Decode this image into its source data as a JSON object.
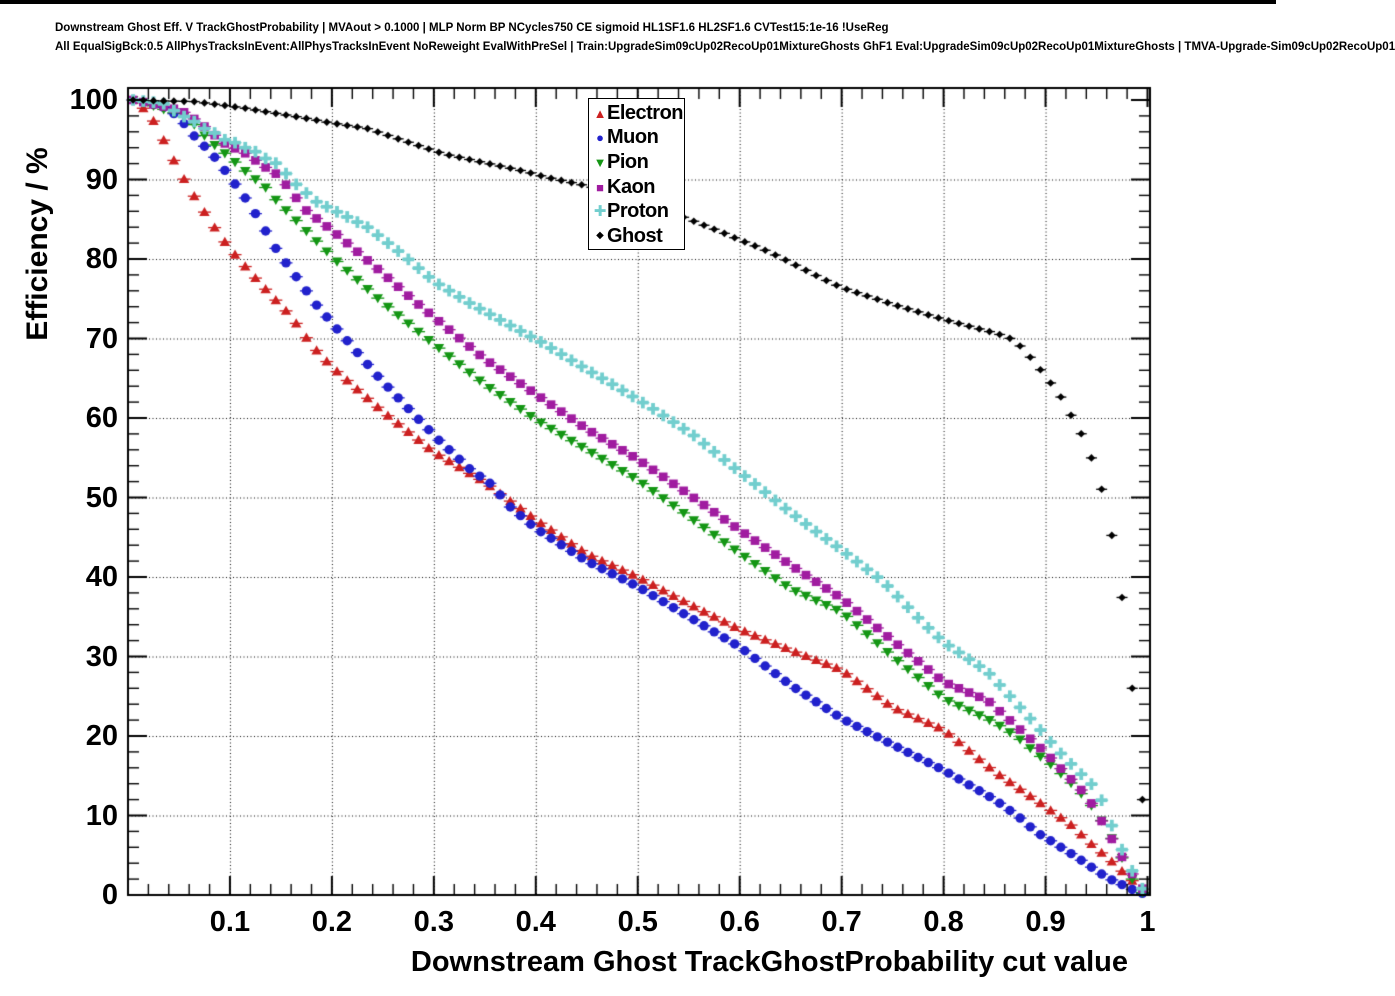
{
  "header": {
    "line1": "Downstream Ghost Eff. V TrackGhostProbability | MVAout > 0.1000 | MLP Norm BP NCycles750 CE sigmoid HL1SF1.6 HL2SF1.6 CVTest15:1e-16 !UseReg",
    "line2": "All EqualSigBck:0.5 AllPhysTracksInEvent:AllPhysTracksInEvent NoReweight EvalWithPreSel | Train:UpgradeSim09cUp02RecoUp01MixtureGhosts GhF1 Eval:UpgradeSim09cUp02RecoUp01MixtureGhosts | TMVA-Upgrade-Sim09cUp02RecoUp01"
  },
  "axes": {
    "y_label": "Efficiency / %",
    "x_label": "Downstream Ghost TrackGhostProbability cut value",
    "y_ticks": [
      {
        "value": 0,
        "label": "0"
      },
      {
        "value": 10,
        "label": "10"
      },
      {
        "value": 20,
        "label": "20"
      },
      {
        "value": 30,
        "label": "30"
      },
      {
        "value": 40,
        "label": "40"
      },
      {
        "value": 50,
        "label": "50"
      },
      {
        "value": 60,
        "label": "60"
      },
      {
        "value": 70,
        "label": "70"
      },
      {
        "value": 80,
        "label": "80"
      },
      {
        "value": 90,
        "label": "90"
      },
      {
        "value": 100,
        "label": "100"
      }
    ],
    "x_ticks": [
      {
        "value": 0.1,
        "label": "0.1"
      },
      {
        "value": 0.2,
        "label": "0.2"
      },
      {
        "value": 0.3,
        "label": "0.3"
      },
      {
        "value": 0.4,
        "label": "0.4"
      },
      {
        "value": 0.5,
        "label": "0.5"
      },
      {
        "value": 0.6,
        "label": "0.6"
      },
      {
        "value": 0.7,
        "label": "0.7"
      },
      {
        "value": 0.8,
        "label": "0.8"
      },
      {
        "value": 0.9,
        "label": "0.9"
      },
      {
        "value": 1.0,
        "label": "1"
      }
    ],
    "x_minor_step": 0.02,
    "y_minor_step": 2,
    "grid_style": "dotted"
  },
  "legend": {
    "entries": [
      {
        "label": "Electron",
        "marker": "triangle-up",
        "color": "#cc2020"
      },
      {
        "label": "Muon",
        "marker": "circle",
        "color": "#2121cc"
      },
      {
        "label": "Pion",
        "marker": "triangle-down",
        "color": "#149614"
      },
      {
        "label": "Kaon",
        "marker": "square",
        "color": "#a01ca0"
      },
      {
        "label": "Proton",
        "marker": "plus",
        "color": "#72cece"
      },
      {
        "label": "Ghost",
        "marker": "diamond",
        "color": "#000000"
      }
    ]
  },
  "chart_data": {
    "type": "scatter",
    "title": "Downstream Ghost Eff. V TrackGhostProbability | MVAout > 0.1000",
    "xlabel": "Downstream Ghost TrackGhostProbability cut value",
    "ylabel": "Efficiency / %",
    "xlim": [
      0.0,
      1.0
    ],
    "ylim": [
      0,
      101.5
    ],
    "grid": true,
    "legend_position": "top-center",
    "x_start": 0.005,
    "x_step": 0.01,
    "x_end": 0.995,
    "series": [
      {
        "name": "Electron",
        "marker": "triangle-up",
        "color": "#cc2020",
        "anchors": [
          [
            0.005,
            100
          ],
          [
            0.012,
            99.3
          ],
          [
            0.02,
            98.4
          ],
          [
            0.03,
            96.3
          ],
          [
            0.04,
            93.6
          ],
          [
            0.05,
            91.2
          ],
          [
            0.06,
            88.9
          ],
          [
            0.07,
            86.9
          ],
          [
            0.08,
            84.9
          ],
          [
            0.09,
            83.0
          ],
          [
            0.1,
            81.3
          ],
          [
            0.12,
            78.3
          ],
          [
            0.14,
            75.5
          ],
          [
            0.16,
            72.8
          ],
          [
            0.18,
            69.2
          ],
          [
            0.2,
            66.4
          ],
          [
            0.25,
            60.8
          ],
          [
            0.3,
            55.7
          ],
          [
            0.35,
            51.9
          ],
          [
            0.4,
            47.2
          ],
          [
            0.45,
            42.9
          ],
          [
            0.5,
            40.0
          ],
          [
            0.55,
            36.6
          ],
          [
            0.6,
            33.4
          ],
          [
            0.65,
            30.8
          ],
          [
            0.7,
            28.3
          ],
          [
            0.75,
            23.6
          ],
          [
            0.8,
            20.8
          ],
          [
            0.85,
            15.5
          ],
          [
            0.9,
            11.1
          ],
          [
            0.925,
            8.8
          ],
          [
            0.945,
            6.4
          ],
          [
            0.965,
            4.2
          ],
          [
            0.985,
            1.8
          ],
          [
            0.995,
            0.7
          ]
        ]
      },
      {
        "name": "Muon",
        "marker": "circle",
        "color": "#2121cc",
        "anchors": [
          [
            0.005,
            100
          ],
          [
            0.02,
            99.6
          ],
          [
            0.037,
            99.0
          ],
          [
            0.047,
            98.1
          ],
          [
            0.056,
            96.9
          ],
          [
            0.068,
            95.0
          ],
          [
            0.08,
            93.6
          ],
          [
            0.09,
            92.0
          ],
          [
            0.1,
            90.3
          ],
          [
            0.12,
            86.8
          ],
          [
            0.147,
            80.9
          ],
          [
            0.166,
            77.6
          ],
          [
            0.185,
            74.2
          ],
          [
            0.205,
            71.2
          ],
          [
            0.246,
            65.1
          ],
          [
            0.286,
            59.7
          ],
          [
            0.305,
            57.2
          ],
          [
            0.336,
            53.5
          ],
          [
            0.356,
            51.7
          ],
          [
            0.375,
            48.8
          ],
          [
            0.4,
            46.1
          ],
          [
            0.45,
            42.0
          ],
          [
            0.5,
            38.8
          ],
          [
            0.55,
            35.0
          ],
          [
            0.6,
            31.2
          ],
          [
            0.65,
            26.4
          ],
          [
            0.7,
            22.2
          ],
          [
            0.75,
            18.9
          ],
          [
            0.8,
            15.7
          ],
          [
            0.85,
            12.0
          ],
          [
            0.873,
            9.9
          ],
          [
            0.892,
            7.8
          ],
          [
            0.904,
            6.9
          ],
          [
            0.93,
            4.8
          ],
          [
            0.96,
            2.2
          ],
          [
            0.985,
            0.7
          ],
          [
            0.995,
            0.2
          ]
        ]
      },
      {
        "name": "Pion",
        "marker": "triangle-down",
        "color": "#149614",
        "anchors": [
          [
            0.005,
            100
          ],
          [
            0.02,
            99.5
          ],
          [
            0.04,
            98.6
          ],
          [
            0.053,
            98.1
          ],
          [
            0.065,
            96.9
          ],
          [
            0.076,
            95.4
          ],
          [
            0.087,
            94.1
          ],
          [
            0.099,
            92.9
          ],
          [
            0.11,
            91.6
          ],
          [
            0.122,
            90.3
          ],
          [
            0.133,
            89.3
          ],
          [
            0.146,
            87.3
          ],
          [
            0.176,
            83.4
          ],
          [
            0.204,
            79.8
          ],
          [
            0.25,
            74.5
          ],
          [
            0.3,
            69.3
          ],
          [
            0.35,
            64.2
          ],
          [
            0.4,
            59.8
          ],
          [
            0.45,
            56.0
          ],
          [
            0.5,
            52.2
          ],
          [
            0.55,
            47.6
          ],
          [
            0.6,
            43.0
          ],
          [
            0.65,
            38.5
          ],
          [
            0.7,
            35.6
          ],
          [
            0.75,
            30.0
          ],
          [
            0.8,
            24.7
          ],
          [
            0.85,
            21.7
          ],
          [
            0.872,
            19.9
          ],
          [
            0.892,
            17.7
          ],
          [
            0.902,
            16.8
          ],
          [
            0.93,
            13.5
          ],
          [
            0.95,
            10.5
          ],
          [
            0.97,
            6.0
          ],
          [
            0.985,
            2.0
          ],
          [
            0.995,
            0.3
          ]
        ]
      },
      {
        "name": "Kaon",
        "marker": "square",
        "color": "#a01ca0",
        "anchors": [
          [
            0.005,
            100
          ],
          [
            0.02,
            99.6
          ],
          [
            0.052,
            98.7
          ],
          [
            0.07,
            97.2
          ],
          [
            0.094,
            94.6
          ],
          [
            0.115,
            93.3
          ],
          [
            0.134,
            91.6
          ],
          [
            0.148,
            90.5
          ],
          [
            0.174,
            86.2
          ],
          [
            0.203,
            83.3
          ],
          [
            0.25,
            78.2
          ],
          [
            0.282,
            74.6
          ],
          [
            0.3,
            72.7
          ],
          [
            0.35,
            67.4
          ],
          [
            0.4,
            63.0
          ],
          [
            0.45,
            58.6
          ],
          [
            0.5,
            54.8
          ],
          [
            0.55,
            50.4
          ],
          [
            0.6,
            45.9
          ],
          [
            0.65,
            41.5
          ],
          [
            0.7,
            37.3
          ],
          [
            0.75,
            32.0
          ],
          [
            0.8,
            26.8
          ],
          [
            0.843,
            24.5
          ],
          [
            0.882,
            20.0
          ],
          [
            0.9,
            17.9
          ],
          [
            0.921,
            15.1
          ],
          [
            0.941,
            12.4
          ],
          [
            0.96,
            8.2
          ],
          [
            0.97,
            5.9
          ],
          [
            0.979,
            3.9
          ],
          [
            0.99,
            1.6
          ],
          [
            0.995,
            0.8
          ]
        ]
      },
      {
        "name": "Proton",
        "marker": "plus",
        "color": "#72cece",
        "anchors": [
          [
            0.005,
            100
          ],
          [
            0.034,
            99.6
          ],
          [
            0.047,
            98.5
          ],
          [
            0.058,
            97.7
          ],
          [
            0.068,
            97.1
          ],
          [
            0.076,
            96.3
          ],
          [
            0.086,
            95.8
          ],
          [
            0.095,
            95.0
          ],
          [
            0.104,
            94.7
          ],
          [
            0.113,
            94.1
          ],
          [
            0.125,
            93.5
          ],
          [
            0.134,
            92.7
          ],
          [
            0.146,
            92.0
          ],
          [
            0.164,
            89.5
          ],
          [
            0.185,
            87.2
          ],
          [
            0.204,
            86.0
          ],
          [
            0.235,
            84.0
          ],
          [
            0.27,
            80.5
          ],
          [
            0.3,
            77.2
          ],
          [
            0.333,
            74.6
          ],
          [
            0.374,
            71.7
          ],
          [
            0.406,
            69.5
          ],
          [
            0.45,
            66.1
          ],
          [
            0.473,
            64.4
          ],
          [
            0.512,
            61.4
          ],
          [
            0.554,
            57.9
          ],
          [
            0.593,
            53.9
          ],
          [
            0.62,
            51.2
          ],
          [
            0.643,
            48.8
          ],
          [
            0.673,
            45.9
          ],
          [
            0.7,
            43.4
          ],
          [
            0.741,
            39.4
          ],
          [
            0.78,
            34.2
          ],
          [
            0.8,
            31.8
          ],
          [
            0.843,
            28.1
          ],
          [
            0.853,
            26.7
          ],
          [
            0.892,
            21.2
          ],
          [
            0.912,
            18.2
          ],
          [
            0.931,
            15.7
          ],
          [
            0.951,
            13.2
          ],
          [
            0.972,
            6.5
          ],
          [
            0.983,
            3.6
          ],
          [
            0.993,
            0.8
          ]
        ]
      },
      {
        "name": "Ghost",
        "marker": "diamond",
        "color": "#000000",
        "anchors": [
          [
            0.005,
            100
          ],
          [
            0.03,
            99.9
          ],
          [
            0.065,
            99.8
          ],
          [
            0.113,
            99.0
          ],
          [
            0.141,
            98.4
          ],
          [
            0.17,
            97.8
          ],
          [
            0.2,
            97.1
          ],
          [
            0.235,
            96.4
          ],
          [
            0.27,
            94.9
          ],
          [
            0.31,
            93.2
          ],
          [
            0.35,
            92.1
          ],
          [
            0.39,
            91.0
          ],
          [
            0.41,
            90.3
          ],
          [
            0.45,
            89.2
          ],
          [
            0.5,
            87.4
          ],
          [
            0.54,
            85.5
          ],
          [
            0.58,
            83.5
          ],
          [
            0.6,
            82.4
          ],
          [
            0.62,
            81.4
          ],
          [
            0.64,
            80.2
          ],
          [
            0.66,
            78.9
          ],
          [
            0.68,
            77.6
          ],
          [
            0.7,
            76.4
          ],
          [
            0.75,
            74.3
          ],
          [
            0.8,
            72.4
          ],
          [
            0.85,
            70.7
          ],
          [
            0.863,
            70.2
          ],
          [
            0.874,
            69.2
          ],
          [
            0.884,
            67.8
          ],
          [
            0.893,
            66.4
          ],
          [
            0.902,
            64.9
          ],
          [
            0.913,
            63.1
          ],
          [
            0.922,
            61.0
          ],
          [
            0.933,
            58.6
          ],
          [
            0.943,
            55.7
          ],
          [
            0.953,
            52.1
          ],
          [
            0.962,
            47.3
          ],
          [
            0.972,
            40.4
          ],
          [
            0.983,
            29.5
          ],
          [
            0.993,
            12.0
          ]
        ]
      }
    ]
  }
}
